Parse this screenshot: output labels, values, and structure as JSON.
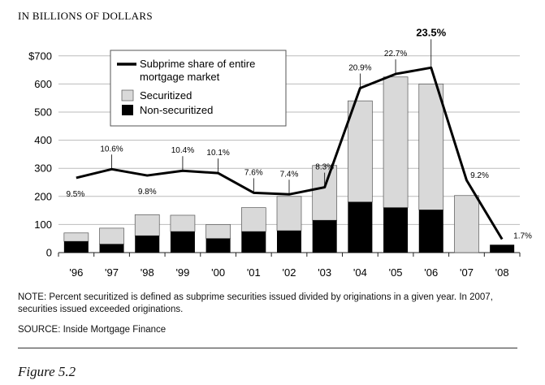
{
  "chart_data": {
    "type": "bar",
    "units_label": "IN BILLIONS OF DOLLARS",
    "categories": [
      "'96",
      "'97",
      "'98",
      "'99",
      "'00",
      "'01",
      "'02",
      "'03",
      "'04",
      "'05",
      "'06",
      "'07",
      "'08"
    ],
    "ylim": [
      0,
      700
    ],
    "yticks": [
      0,
      100,
      200,
      300,
      400,
      500,
      600,
      700
    ],
    "ytick_labels": [
      "0",
      "100",
      "200",
      "300",
      "400",
      "500",
      "600",
      "$700"
    ],
    "series": [
      {
        "name": "Non-securitized",
        "color": "#000000",
        "values": [
          40,
          30,
          60,
          75,
          50,
          75,
          78,
          115,
          180,
          160,
          152,
          0,
          28
        ]
      },
      {
        "name": "Securitized",
        "color": "#d9d9d9",
        "values": [
          30,
          57,
          75,
          58,
          50,
          85,
          122,
          195,
          360,
          465,
          448,
          203,
          0
        ]
      }
    ],
    "line_series": {
      "name": "Subprime share of entire mortgage market",
      "values": [
        9.5,
        10.6,
        9.8,
        10.4,
        10.1,
        7.6,
        7.4,
        8.3,
        20.9,
        22.7,
        23.5,
        9.2,
        1.7
      ],
      "labels": [
        "9.5%",
        "10.6%",
        "9.8%",
        "10.4%",
        "10.1%",
        "7.6%",
        "7.4%",
        "8.3%",
        "20.9%",
        "22.7%",
        "23.5%",
        "9.2%",
        "1.7%"
      ]
    },
    "legend_position": "top-left",
    "grid": true
  },
  "legend": {
    "line_label_1": "Subprime share of entire",
    "line_label_2": "mortgage market",
    "securitized": "Securitized",
    "non_securitized": "Non-securitized"
  },
  "note": "NOTE: Percent securitized is defined as subprime securities issued divided by originations in a given year. In 2007, securities issued exceeded originations.",
  "source": "SOURCE: Inside Mortgage Finance",
  "caption": "Figure 5.2"
}
